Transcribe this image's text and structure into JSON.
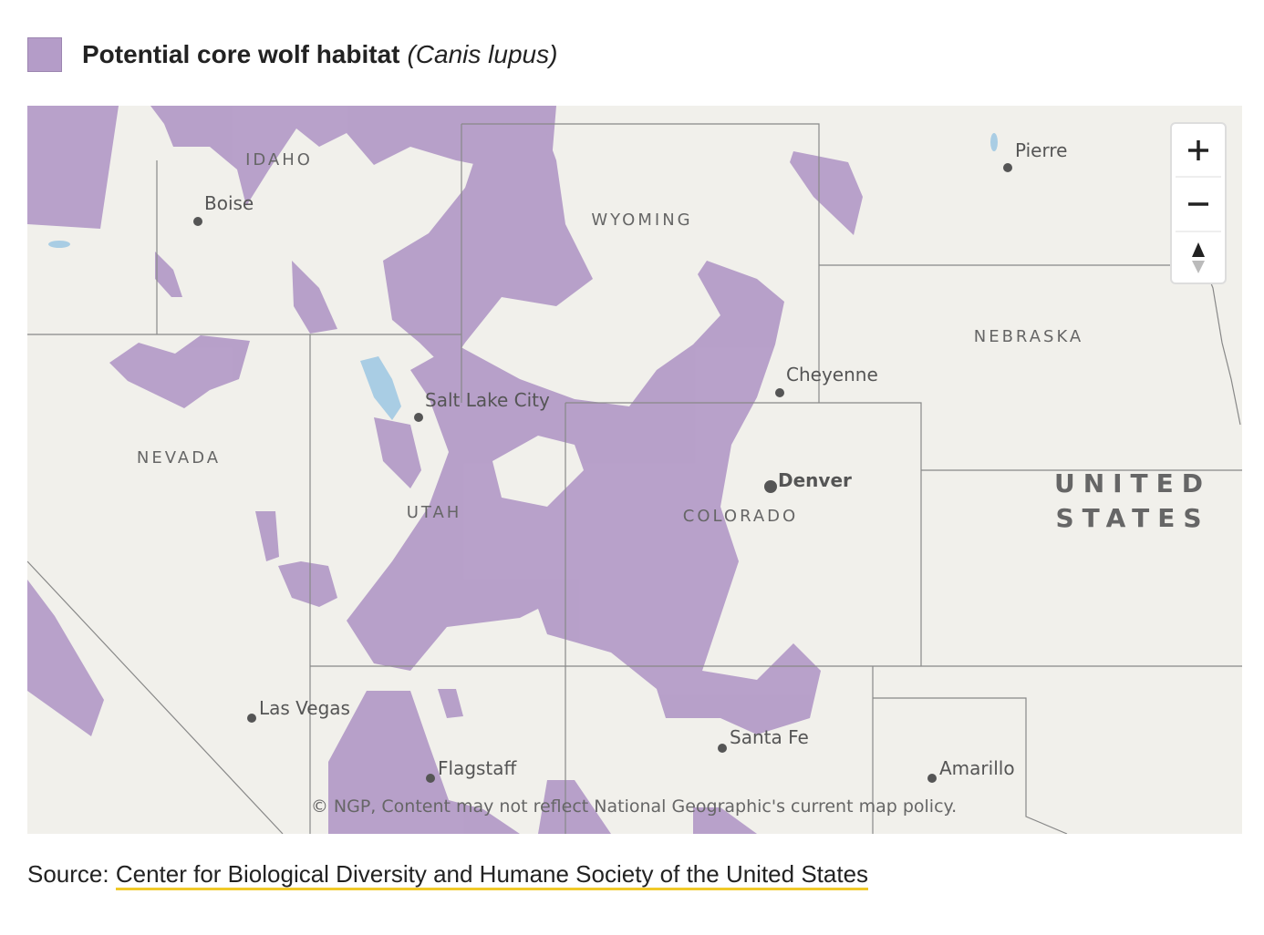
{
  "legend": {
    "title": "Potential core wolf habitat",
    "species": "(Canis lupus)"
  },
  "map": {
    "regions": [
      "IDAHO",
      "WYOMING",
      "NEBRASKA",
      "NEVADA",
      "UTAH",
      "COLORADO"
    ],
    "country": [
      "UNITED",
      "STATES"
    ],
    "cities": [
      "Pierre",
      "Boise",
      "Cheyenne",
      "Salt Lake City",
      "Denver",
      "Las Vegas",
      "Santa Fe",
      "Flagstaff",
      "Amarillo"
    ],
    "attribution": "© NGP, Content may not reflect National Geographic's current map policy."
  },
  "source": {
    "label": "Source:",
    "link": "Center for Biological Diversity and Humane Society of the United States"
  }
}
